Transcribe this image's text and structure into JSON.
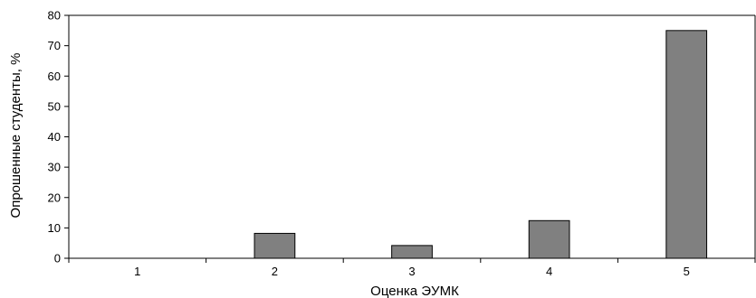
{
  "chart_data": {
    "type": "bar",
    "categories": [
      "1",
      "2",
      "3",
      "4",
      "5"
    ],
    "values": [
      0,
      8.2,
      4.2,
      12.4,
      75
    ],
    "xlabel": "Оценка ЭУМК",
    "ylabel": "Опрошенные студенты, %",
    "ylim": [
      0,
      80
    ],
    "yticks": [
      0,
      10,
      20,
      30,
      40,
      50,
      60,
      70,
      80
    ],
    "grid": false,
    "legend": "none",
    "bar_color": "#808080",
    "bar_edge_color": "#000000"
  }
}
